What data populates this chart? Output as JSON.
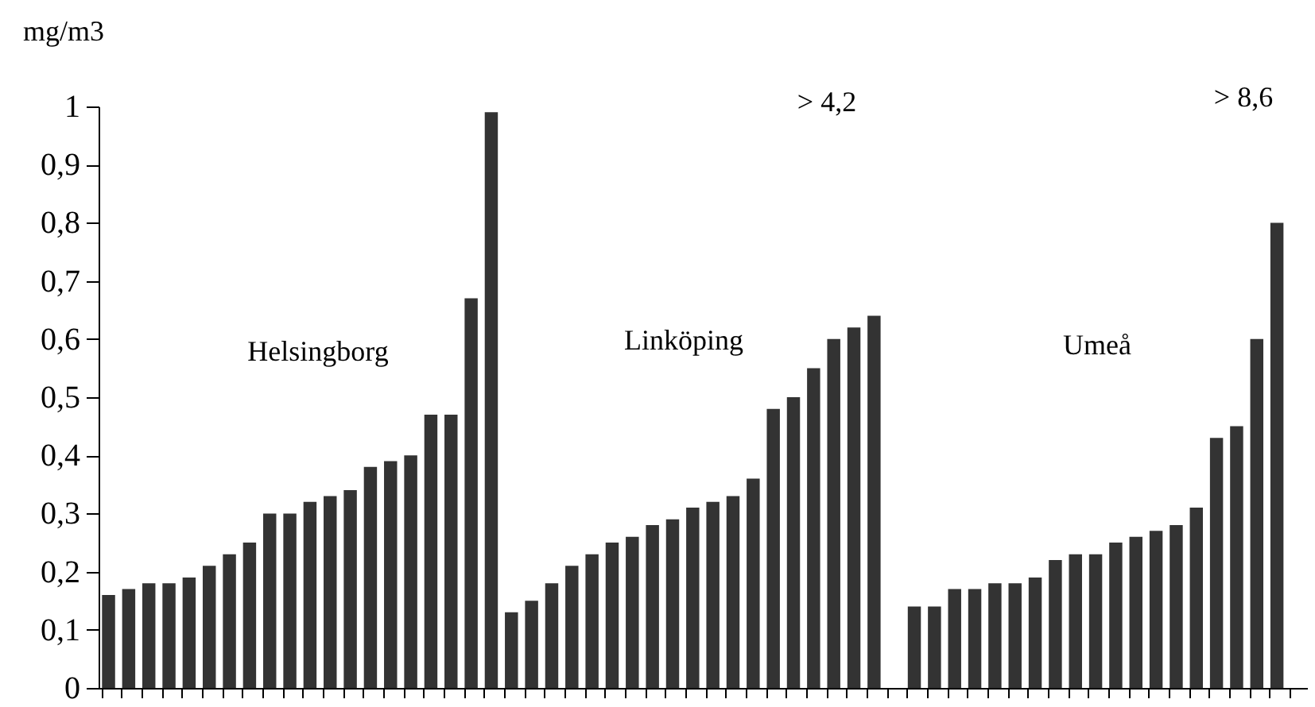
{
  "chart_data": {
    "type": "bar",
    "ylabel": "mg/m3",
    "categories": [
      null,
      null,
      null,
      null,
      null,
      null,
      null,
      null,
      null,
      null,
      null,
      null,
      null,
      null,
      null,
      null,
      null,
      null,
      null,
      null,
      null,
      null,
      null,
      null,
      null,
      null,
      null,
      null,
      null,
      null,
      null,
      null,
      null,
      null,
      null,
      null,
      null,
      null,
      null,
      null,
      null,
      null,
      null,
      null,
      null,
      null,
      null,
      null,
      null,
      null,
      null,
      null,
      null,
      null,
      null,
      null,
      null,
      null,
      null,
      null
    ],
    "values": [
      0.16,
      0.17,
      0.18,
      0.18,
      0.19,
      0.21,
      0.23,
      0.25,
      0.3,
      0.3,
      0.32,
      0.33,
      0.34,
      0.38,
      0.39,
      0.4,
      0.47,
      0.47,
      0.67,
      0.99,
      0.13,
      0.15,
      0.18,
      0.21,
      0.23,
      0.25,
      0.26,
      0.28,
      0.29,
      0.31,
      0.32,
      0.33,
      0.36,
      0.48,
      0.5,
      0.55,
      0.6,
      0.62,
      0.64,
      null,
      0.14,
      0.14,
      0.17,
      0.17,
      0.18,
      0.18,
      0.19,
      0.22,
      0.23,
      0.23,
      0.25,
      0.26,
      0.27,
      0.28,
      0.31,
      0.43,
      0.45,
      0.6,
      0.8,
      null
    ],
    "color": "#333333",
    "ylim": [
      0,
      1
    ],
    "yticks": [
      0,
      {
        "value": 0.1,
        "label": "0,1"
      },
      {
        "value": 0.2,
        "label": "0,2"
      },
      {
        "value": 0.3,
        "label": "0,3"
      },
      {
        "value": 0.4,
        "label": "0,4"
      },
      {
        "value": 0.5,
        "label": "0,5"
      },
      {
        "value": 0.6,
        "label": "0,6"
      },
      {
        "value": 0.7,
        "label": "0,7"
      },
      {
        "value": 0.8,
        "label": "0,8"
      },
      {
        "value": 0.9,
        "label": "0,9"
      },
      1
    ],
    "annotations": [
      "Helsingborg",
      "Linköping",
      "Umeå",
      "> 4,2",
      "> 8,6"
    ],
    "grid": false
  }
}
